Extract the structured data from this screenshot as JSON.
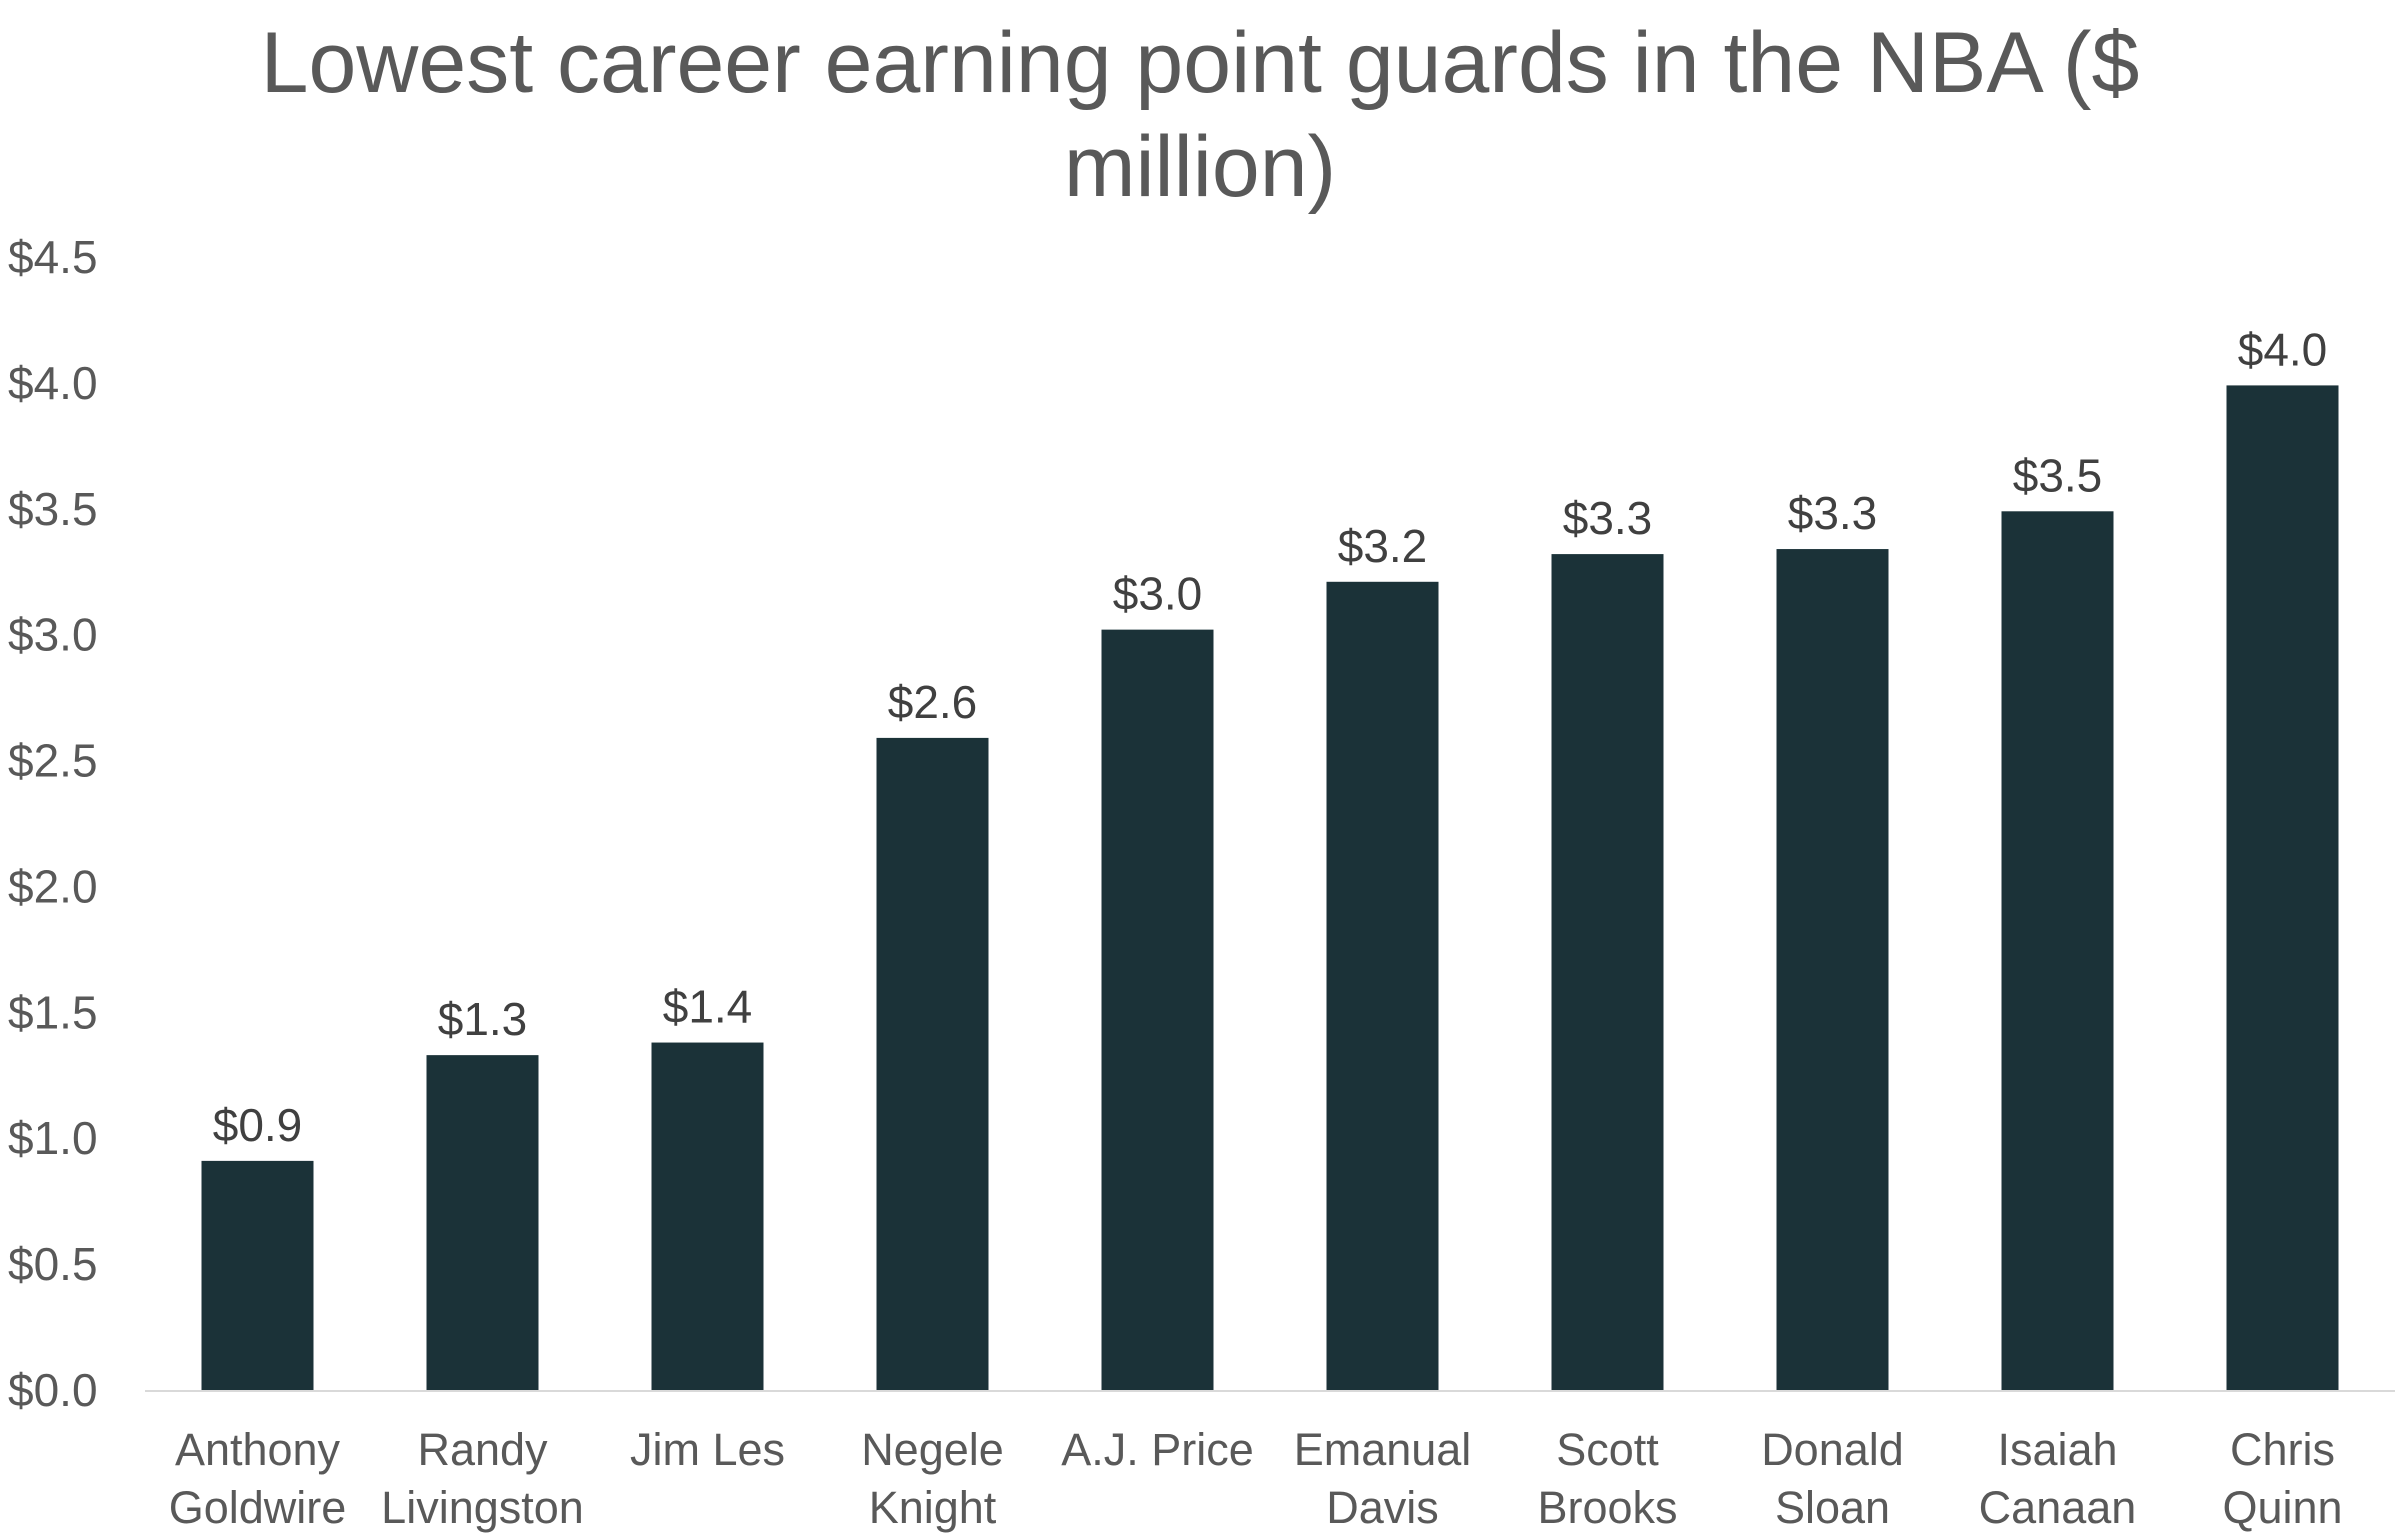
{
  "chart_data": {
    "type": "bar",
    "title_lines": [
      "Lowest career earning point guards in the NBA ($",
      "million)"
    ],
    "categories": [
      [
        "Anthony",
        "Goldwire"
      ],
      [
        "Randy",
        "Livingston"
      ],
      [
        "Jim Les"
      ],
      [
        "Negele",
        "Knight"
      ],
      [
        "A.J. Price"
      ],
      [
        "Emanual",
        "Davis"
      ],
      [
        "Scott",
        "Brooks"
      ],
      [
        "Donald",
        "Sloan"
      ],
      [
        "Isaiah",
        "Canaan"
      ],
      [
        "Chris",
        "Quinn"
      ]
    ],
    "values": [
      0.91,
      1.33,
      1.38,
      2.59,
      3.02,
      3.21,
      3.32,
      3.34,
      3.49,
      3.99
    ],
    "data_labels": [
      "$0.9",
      "$1.3",
      "$1.4",
      "$2.6",
      "$3.0",
      "$3.2",
      "$3.3",
      "$3.3",
      "$3.5",
      "$4.0"
    ],
    "y_ticks": [
      0,
      0.5,
      1.0,
      1.5,
      2.0,
      2.5,
      3.0,
      3.5,
      4.0,
      4.5
    ],
    "y_tick_labels": [
      "$0.0",
      "$0.5",
      "$1.0",
      "$1.5",
      "$2.0",
      "$2.5",
      "$3.0",
      "$3.5",
      "$4.0",
      "$4.5"
    ],
    "ylim": [
      0,
      4.5
    ],
    "grid": false,
    "legend": "none",
    "bar_color": "#1b3238",
    "axis_color": "#d9d9d9"
  }
}
